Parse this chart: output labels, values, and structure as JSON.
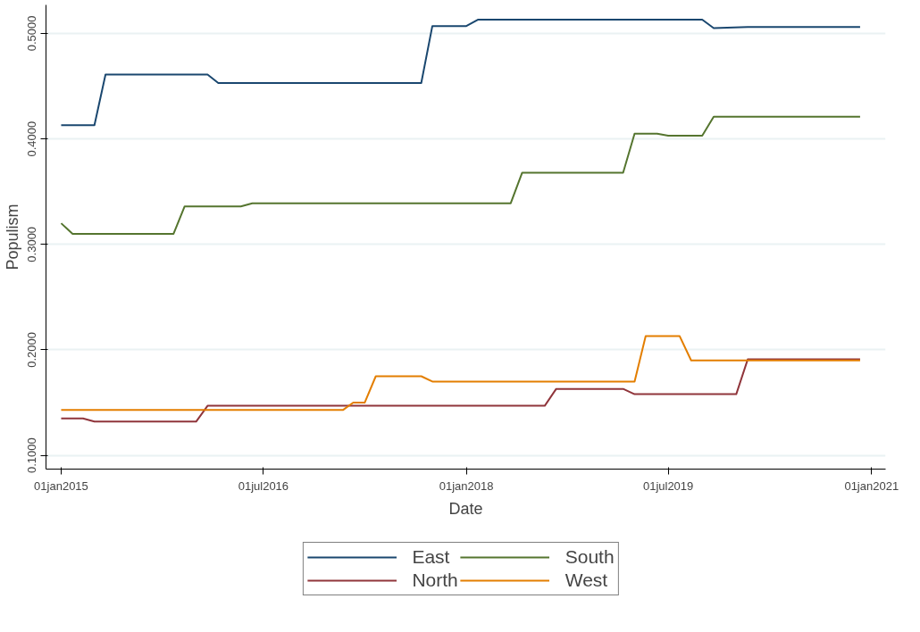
{
  "chart_data": {
    "type": "line",
    "xlabel": "Date",
    "ylabel": "Populism",
    "xlim": [
      "2014-11-21",
      "2021-02-08"
    ],
    "ylim": [
      0.087,
      0.527
    ],
    "xticks": [
      {
        "value": "2015-01-01",
        "label": "01jan2015"
      },
      {
        "value": "2016-07-01",
        "label": "01jul2016"
      },
      {
        "value": "2018-01-01",
        "label": "01jan2018"
      },
      {
        "value": "2019-07-01",
        "label": "01jul2019"
      },
      {
        "value": "2021-01-01",
        "label": "01jan2021"
      }
    ],
    "yticks": [
      {
        "value": 0.1,
        "label": "0.1000"
      },
      {
        "value": 0.2,
        "label": "0.2000"
      },
      {
        "value": 0.3,
        "label": "0.3000"
      },
      {
        "value": 0.4,
        "label": "0.4000"
      },
      {
        "value": 0.5,
        "label": "0.5000"
      }
    ],
    "grid": "y",
    "legend": "bottom",
    "line_style": "solid",
    "marker": "none",
    "series": [
      {
        "name": "East",
        "color": "#1a476f",
        "x": [
          "2015-01",
          "2015-04",
          "2015-05",
          "2016-02",
          "2016-03",
          "2017-09",
          "2017-10",
          "2018-01",
          "2018-02",
          "2019-10",
          "2019-11",
          "2020-02",
          "2020-12"
        ],
        "values": [
          0.413,
          0.413,
          0.461,
          0.461,
          0.453,
          0.453,
          0.507,
          0.507,
          0.513,
          0.513,
          0.505,
          0.506,
          0.506
        ]
      },
      {
        "name": "North",
        "color": "#90353b",
        "x": [
          "2015-01",
          "2015-03",
          "2015-04",
          "2016-01",
          "2016-02",
          "2018-08",
          "2018-09",
          "2019-03",
          "2019-04",
          "2020-01",
          "2020-02",
          "2020-12"
        ],
        "values": [
          0.135,
          0.135,
          0.132,
          0.132,
          0.147,
          0.147,
          0.163,
          0.163,
          0.158,
          0.158,
          0.191,
          0.191
        ]
      },
      {
        "name": "South",
        "color": "#55752f",
        "x": [
          "2015-01",
          "2015-02",
          "2015-11",
          "2015-12",
          "2016-05",
          "2016-06",
          "2018-05",
          "2018-06",
          "2019-03",
          "2019-04",
          "2019-06",
          "2019-07",
          "2019-10",
          "2019-11",
          "2020-12"
        ],
        "values": [
          0.32,
          0.31,
          0.31,
          0.336,
          0.336,
          0.339,
          0.339,
          0.368,
          0.368,
          0.405,
          0.405,
          0.403,
          0.403,
          0.421,
          0.421
        ]
      },
      {
        "name": "West",
        "color": "#e37e00",
        "x": [
          "2015-01",
          "2017-02",
          "2017-03",
          "2017-04",
          "2017-05",
          "2017-09",
          "2017-10",
          "2019-04",
          "2019-05",
          "2019-08",
          "2019-09",
          "2020-12"
        ],
        "values": [
          0.143,
          0.143,
          0.15,
          0.15,
          0.175,
          0.175,
          0.17,
          0.17,
          0.213,
          0.213,
          0.19,
          0.19
        ]
      }
    ]
  }
}
